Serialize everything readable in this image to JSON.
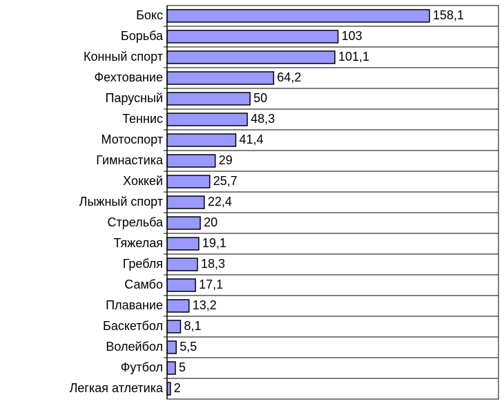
{
  "chart_data": {
    "type": "bar",
    "orientation": "horizontal",
    "categories": [
      "Бокс",
      "Борьба",
      "Конный спорт",
      "Фехтование",
      "Парусный",
      "Теннис",
      "Мотоспорт",
      "Гимнастика",
      "Хоккей",
      "Лыжный спорт",
      "Стрельба",
      "Тяжелая",
      "Гребля",
      "Самбо",
      "Плавание",
      "Баскетбол",
      "Волейбол",
      "Футбол",
      "Легкая атлетика"
    ],
    "values": [
      158.1,
      103,
      101.1,
      64.2,
      50,
      48.3,
      41.4,
      29,
      25.7,
      22.4,
      20,
      19.1,
      18.3,
      17.1,
      13.2,
      8.1,
      5.5,
      5,
      2
    ],
    "value_labels": [
      "158,1",
      "103",
      "101,1",
      "64,2",
      "50",
      "48,3",
      "41,4",
      "29",
      "25,7",
      "22,4",
      "20",
      "19,1",
      "18,3",
      "17,1",
      "13,2",
      "8,1",
      "5,5",
      "5",
      "2"
    ],
    "color": "#9999ff",
    "grid": true
  }
}
